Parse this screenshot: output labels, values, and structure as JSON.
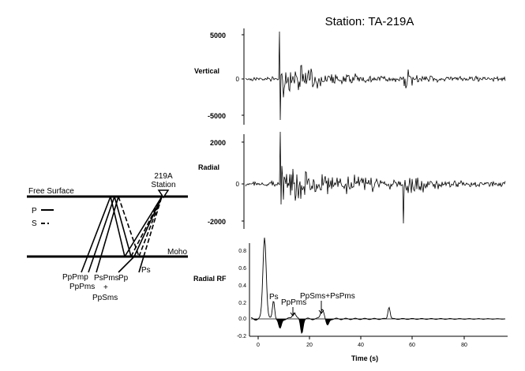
{
  "figure": {
    "station_title": "Station: TA-219A"
  },
  "diagram": {
    "free_surface_label": "Free Surface",
    "moho_label": "Moho",
    "station_label_line1": "219A",
    "station_label_line2": "Station",
    "legend_p": "P",
    "legend_s": "S",
    "phase_labels": {
      "ppmp": "PpPmp",
      "ppms": "PpPms",
      "psms": "PsPms",
      "plus": "+",
      "ppsms": "PpSms",
      "pp": "Pp",
      "ps": "Ps"
    }
  },
  "panels": {
    "vertical": {
      "label": "Vertical",
      "ticks": [
        "5000",
        "0",
        "-5000"
      ]
    },
    "radial": {
      "label": "Radial",
      "ticks": [
        "2000",
        "0",
        "-2000"
      ]
    },
    "radial_rf": {
      "label": "Radial RF",
      "ticks": [
        "0.8",
        "0.6",
        "0.4",
        "0.2",
        "0.0",
        "-0.2"
      ],
      "annotations": {
        "ps": "Ps",
        "ppps": "PpPms",
        "ppsms_psms": "PpSms+PsPms"
      }
    }
  },
  "x_axis": {
    "label": "Time (s)",
    "ticks": [
      "0",
      "20",
      "40",
      "60",
      "80"
    ]
  }
}
